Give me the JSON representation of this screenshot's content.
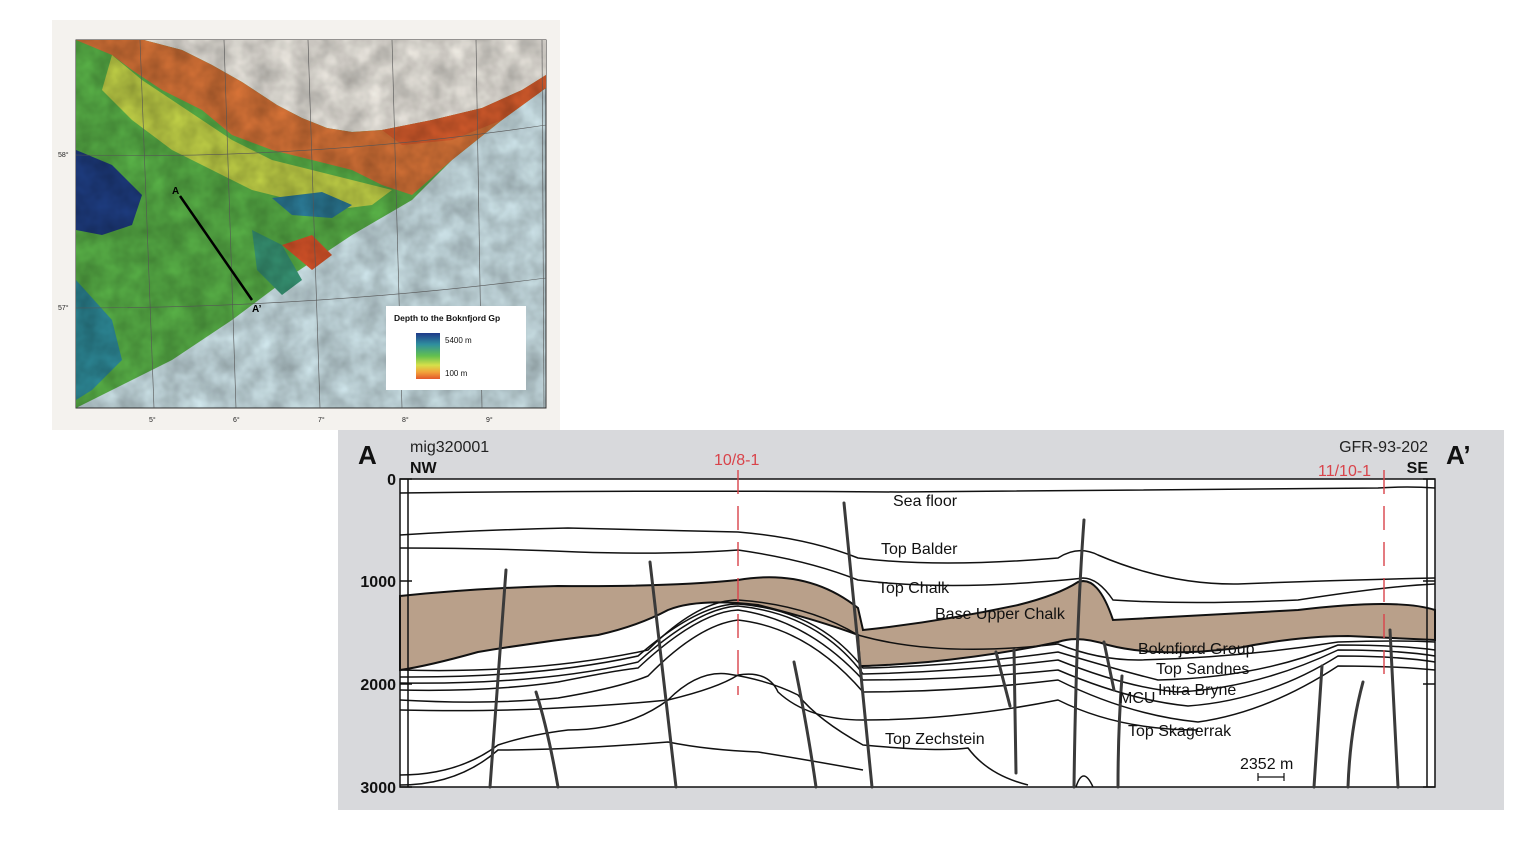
{
  "map": {
    "latitude_labels": [
      "58°",
      "57°"
    ],
    "longitude_labels": [
      "5°",
      "6°",
      "7°",
      "8°",
      "9°"
    ],
    "profile_start": "A",
    "profile_end": "A’",
    "legend": {
      "title": "Depth to the Boknfjord Gp",
      "max_label": "5400 m",
      "min_label": "100 m",
      "colors": [
        "#1e3a8a",
        "#2f8f9e",
        "#63c04e",
        "#d6e04a",
        "#f2a33a",
        "#e3582b"
      ]
    }
  },
  "section": {
    "left_label": "A",
    "right_label": "A’",
    "left_line": "mig320001",
    "right_line": "GFR-93-202",
    "left_direction": "NW",
    "right_direction": "SE",
    "depth_ticks": [
      "0",
      "1000",
      "2000",
      "3000"
    ],
    "wells": [
      "10/8-1",
      "11/10-1"
    ],
    "horizons": {
      "sea_floor": "Sea floor",
      "top_balder": "Top Balder",
      "top_chalk": "Top Chalk",
      "base_upper_chalk": "Base Upper Chalk",
      "boknfjord": "Boknfjord Group",
      "top_sandnes": "Top Sandnes",
      "intra_bryne": "Intra Bryne",
      "mcu": "MCU",
      "top_skagerrak": "Top Skagerrak",
      "top_zechstein": "Top Zechstein"
    },
    "scale_bar": "2352 m",
    "colors": {
      "boknfjord_fill": "#b9a08a",
      "well": "#d9434a",
      "line": "#111111",
      "fault": "#3a3a3a"
    }
  }
}
